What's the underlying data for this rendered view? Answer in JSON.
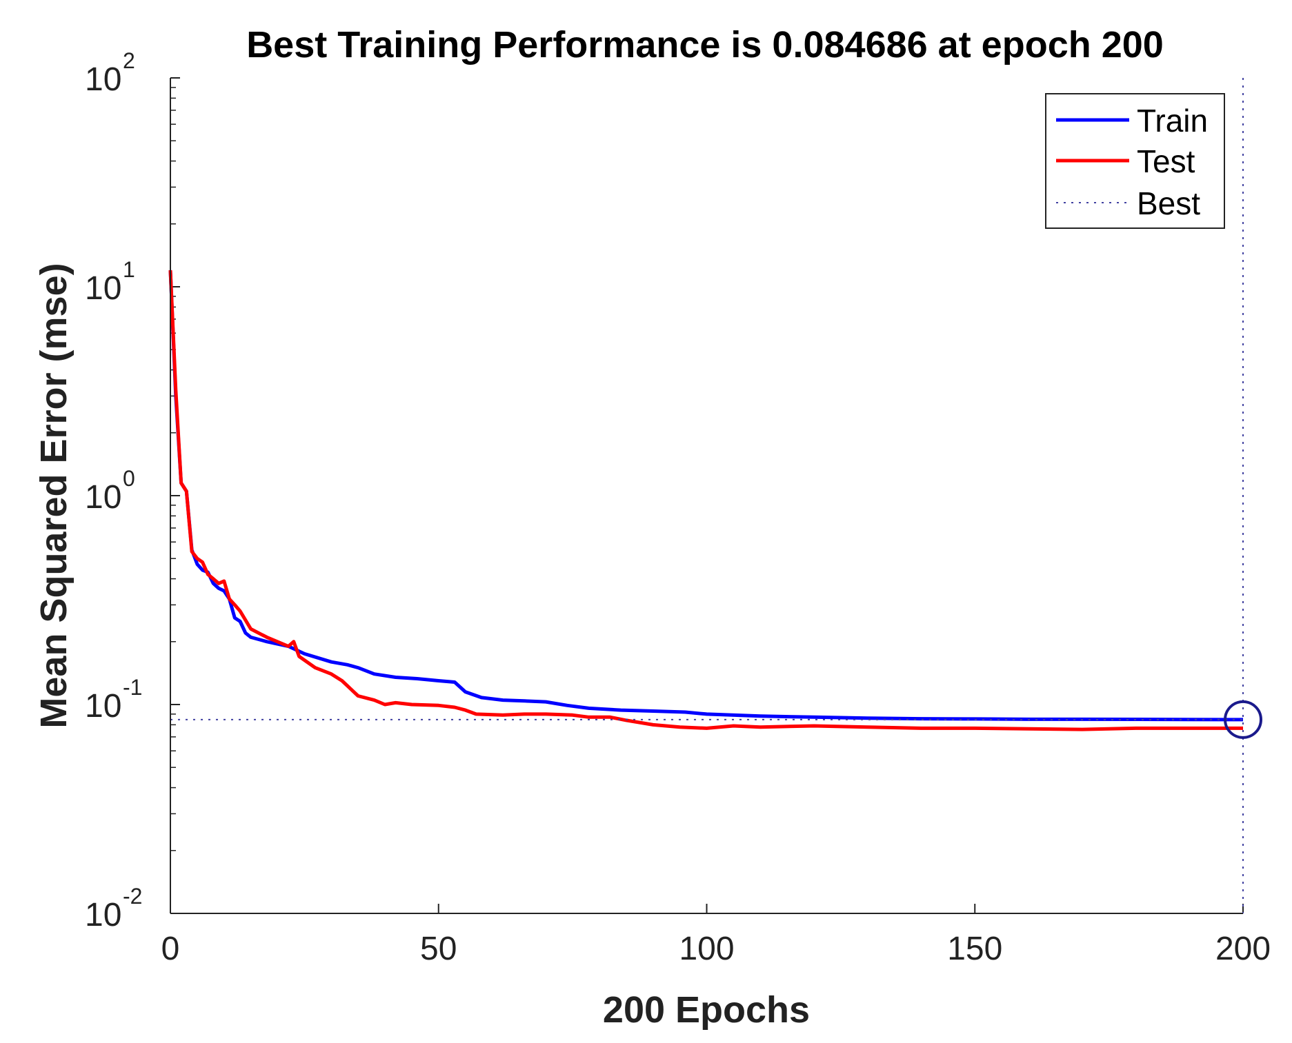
{
  "chart_data": {
    "type": "line",
    "title": "Best Training Performance is 0.084686 at epoch 200",
    "xlabel": "200 Epochs",
    "ylabel": "Mean Squared Error  (mse)",
    "xlim": [
      0,
      200
    ],
    "ylim": [
      0.01,
      100
    ],
    "yscale": "log",
    "x_ticks": [
      0,
      50,
      100,
      150,
      200
    ],
    "x_tick_labels": [
      "0",
      "50",
      "100",
      "150",
      "200"
    ],
    "y_ticks": [
      0.01,
      0.1,
      1,
      10,
      100
    ],
    "y_tick_labels": [
      {
        "base": "10",
        "exp": "-2"
      },
      {
        "base": "10",
        "exp": "-1"
      },
      {
        "base": "10",
        "exp": "0"
      },
      {
        "base": "10",
        "exp": "1"
      },
      {
        "base": "10",
        "exp": "2"
      }
    ],
    "legend": {
      "position": "top-right",
      "entries": [
        {
          "label": "Train",
          "color": "#0000ff",
          "style": "solid"
        },
        {
          "label": "Test",
          "color": "#ff0000",
          "style": "solid"
        },
        {
          "label": "Best",
          "color": "#4040a0",
          "style": "dotted"
        }
      ]
    },
    "series": [
      {
        "name": "Train",
        "color": "#0000ff",
        "points": [
          [
            0,
            12
          ],
          [
            1,
            3.0
          ],
          [
            2,
            1.15
          ],
          [
            3,
            1.05
          ],
          [
            4,
            0.55
          ],
          [
            5,
            0.47
          ],
          [
            6,
            0.44
          ],
          [
            7,
            0.43
          ],
          [
            8,
            0.38
          ],
          [
            9,
            0.36
          ],
          [
            10,
            0.35
          ],
          [
            11,
            0.32
          ],
          [
            12,
            0.26
          ],
          [
            13,
            0.25
          ],
          [
            14,
            0.22
          ],
          [
            15,
            0.21
          ],
          [
            18,
            0.2
          ],
          [
            22,
            0.19
          ],
          [
            25,
            0.175
          ],
          [
            30,
            0.16
          ],
          [
            33,
            0.155
          ],
          [
            35,
            0.15
          ],
          [
            38,
            0.14
          ],
          [
            42,
            0.135
          ],
          [
            46,
            0.133
          ],
          [
            50,
            0.13
          ],
          [
            53,
            0.128
          ],
          [
            55,
            0.115
          ],
          [
            58,
            0.108
          ],
          [
            62,
            0.105
          ],
          [
            66,
            0.104
          ],
          [
            70,
            0.103
          ],
          [
            74,
            0.099
          ],
          [
            78,
            0.096
          ],
          [
            84,
            0.094
          ],
          [
            90,
            0.093
          ],
          [
            96,
            0.092
          ],
          [
            100,
            0.09
          ],
          [
            110,
            0.088
          ],
          [
            120,
            0.087
          ],
          [
            130,
            0.086
          ],
          [
            140,
            0.0855
          ],
          [
            150,
            0.0853
          ],
          [
            160,
            0.085
          ],
          [
            170,
            0.085
          ],
          [
            180,
            0.0849
          ],
          [
            190,
            0.0848
          ],
          [
            200,
            0.084686
          ]
        ]
      },
      {
        "name": "Test",
        "color": "#ff0000",
        "points": [
          [
            0,
            12
          ],
          [
            1,
            3.2
          ],
          [
            2,
            1.15
          ],
          [
            3,
            1.05
          ],
          [
            4,
            0.54
          ],
          [
            5,
            0.5
          ],
          [
            6,
            0.48
          ],
          [
            7,
            0.42
          ],
          [
            8,
            0.4
          ],
          [
            9,
            0.38
          ],
          [
            10,
            0.39
          ],
          [
            11,
            0.32
          ],
          [
            12,
            0.3
          ],
          [
            13,
            0.28
          ],
          [
            15,
            0.23
          ],
          [
            18,
            0.21
          ],
          [
            22,
            0.19
          ],
          [
            23,
            0.2
          ],
          [
            24,
            0.17
          ],
          [
            27,
            0.15
          ],
          [
            30,
            0.14
          ],
          [
            32,
            0.13
          ],
          [
            35,
            0.11
          ],
          [
            38,
            0.105
          ],
          [
            40,
            0.1
          ],
          [
            42,
            0.102
          ],
          [
            45,
            0.1
          ],
          [
            50,
            0.099
          ],
          [
            53,
            0.097
          ],
          [
            55,
            0.094
          ],
          [
            57,
            0.09
          ],
          [
            62,
            0.089
          ],
          [
            66,
            0.09
          ],
          [
            70,
            0.09
          ],
          [
            75,
            0.089
          ],
          [
            78,
            0.087
          ],
          [
            82,
            0.087
          ],
          [
            85,
            0.084
          ],
          [
            90,
            0.08
          ],
          [
            95,
            0.078
          ],
          [
            100,
            0.077
          ],
          [
            105,
            0.079
          ],
          [
            110,
            0.078
          ],
          [
            120,
            0.079
          ],
          [
            130,
            0.078
          ],
          [
            140,
            0.077
          ],
          [
            150,
            0.077
          ],
          [
            160,
            0.0765
          ],
          [
            170,
            0.076
          ],
          [
            180,
            0.077
          ],
          [
            190,
            0.077
          ],
          [
            200,
            0.077
          ]
        ]
      }
    ],
    "best": {
      "epoch": 200,
      "value": 0.084686
    }
  }
}
